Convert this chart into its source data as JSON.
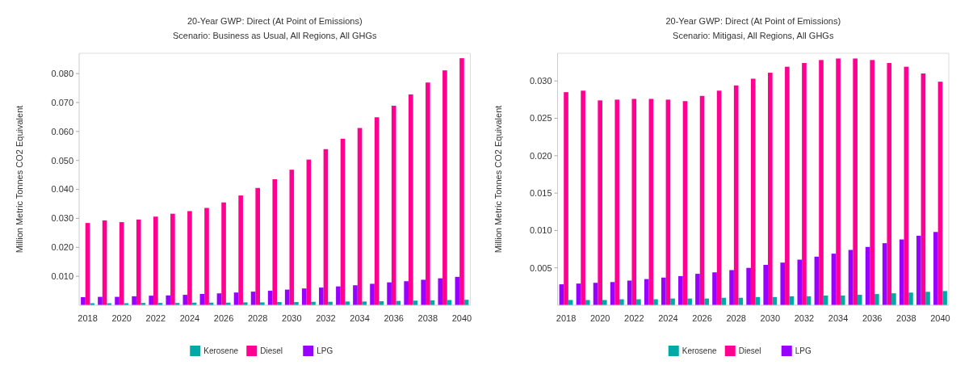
{
  "chart_data": [
    {
      "type": "bar",
      "title": "20-Year GWP: Direct (At Point of Emissions)",
      "subtitle": "Scenario: Business as Usual, All Regions, All GHGs",
      "ylabel": "Million Metric Tonnes CO2 Equivalent",
      "categories": [
        "2018",
        null,
        "2020",
        null,
        "2022",
        null,
        "2024",
        null,
        "2026",
        null,
        "2028",
        null,
        "2030",
        null,
        "2032",
        null,
        "2034",
        null,
        "2036",
        null,
        "2038",
        null,
        "2040"
      ],
      "series": [
        {
          "name": "Kerosene",
          "color": "#00a9a5",
          "values": [
            0.0007,
            0.0007,
            0.0007,
            0.0008,
            0.0008,
            0.0008,
            0.0009,
            0.0009,
            0.0009,
            0.001,
            0.001,
            0.0011,
            0.0011,
            0.0012,
            0.0012,
            0.0013,
            0.0013,
            0.0014,
            0.0015,
            0.0016,
            0.0017,
            0.0018,
            0.0019
          ]
        },
        {
          "name": "Diesel",
          "color": "#ff0090",
          "values": [
            0.0284,
            0.0293,
            0.0287,
            0.0296,
            0.0306,
            0.0316,
            0.0325,
            0.0336,
            0.0355,
            0.0379,
            0.0405,
            0.0435,
            0.0468,
            0.0503,
            0.0539,
            0.0575,
            0.0612,
            0.0649,
            0.0689,
            0.0728,
            0.0769,
            0.0811,
            0.0853
          ]
        },
        {
          "name": "LPG",
          "color": "#9900ff",
          "values": [
            0.0028,
            0.0029,
            0.0029,
            0.0031,
            0.0033,
            0.0034,
            0.0036,
            0.0039,
            0.0041,
            0.0044,
            0.0047,
            0.005,
            0.0054,
            0.0058,
            0.0061,
            0.0065,
            0.0069,
            0.0074,
            0.0079,
            0.0083,
            0.0088,
            0.0093,
            0.0098
          ]
        }
      ],
      "ylim": [
        0,
        0.087
      ],
      "yticks": [
        {
          "value": 0.01,
          "label": "0.010"
        },
        {
          "value": 0.02,
          "label": "0.020"
        },
        {
          "value": 0.03,
          "label": "0.030"
        },
        {
          "value": 0.04,
          "label": "0.040"
        },
        {
          "value": 0.05,
          "label": "0.050"
        },
        {
          "value": 0.06,
          "label": "0.060"
        },
        {
          "value": 0.07,
          "label": "0.070"
        },
        {
          "value": 0.08,
          "label": "0.080"
        }
      ],
      "legend": "bottom"
    },
    {
      "type": "bar",
      "title": "20-Year GWP: Direct (At Point of Emissions)",
      "subtitle": "Scenario: Mitigasi, All Regions, All GHGs",
      "ylabel": "Million Metric Tonnes CO2 Equivalent",
      "categories": [
        "2018",
        null,
        "2020",
        null,
        "2022",
        null,
        "2024",
        null,
        "2026",
        null,
        "2028",
        null,
        "2030",
        null,
        "2032",
        null,
        "2034",
        null,
        "2036",
        null,
        "2038",
        null,
        "2040"
      ],
      "series": [
        {
          "name": "Kerosene",
          "color": "#00a9a5",
          "values": [
            0.0007,
            0.0007,
            0.0007,
            0.0008,
            0.0008,
            0.0008,
            0.0009,
            0.0009,
            0.0009,
            0.001,
            0.001,
            0.0011,
            0.0011,
            0.0012,
            0.0012,
            0.0013,
            0.0013,
            0.0014,
            0.0015,
            0.0016,
            0.0017,
            0.0018,
            0.0019
          ]
        },
        {
          "name": "Diesel",
          "color": "#ff0090",
          "values": [
            0.0285,
            0.0287,
            0.0274,
            0.0275,
            0.0276,
            0.0276,
            0.0275,
            0.0273,
            0.028,
            0.0287,
            0.0294,
            0.0303,
            0.0311,
            0.0319,
            0.0324,
            0.0328,
            0.033,
            0.033,
            0.0328,
            0.0324,
            0.0319,
            0.031,
            0.0299
          ]
        },
        {
          "name": "LPG",
          "color": "#9900ff",
          "values": [
            0.0028,
            0.0029,
            0.003,
            0.0031,
            0.0033,
            0.0035,
            0.0037,
            0.0039,
            0.0042,
            0.0044,
            0.0047,
            0.005,
            0.0054,
            0.0057,
            0.0061,
            0.0065,
            0.0069,
            0.0074,
            0.0078,
            0.0083,
            0.0088,
            0.0093,
            0.0098
          ]
        }
      ],
      "ylim": [
        0,
        0.0337
      ],
      "yticks": [
        {
          "value": 0.005,
          "label": "0.005"
        },
        {
          "value": 0.01,
          "label": "0.010"
        },
        {
          "value": 0.015,
          "label": "0.015"
        },
        {
          "value": 0.02,
          "label": "0.020"
        },
        {
          "value": 0.025,
          "label": "0.025"
        },
        {
          "value": 0.03,
          "label": "0.030"
        }
      ],
      "legend": "bottom"
    }
  ]
}
